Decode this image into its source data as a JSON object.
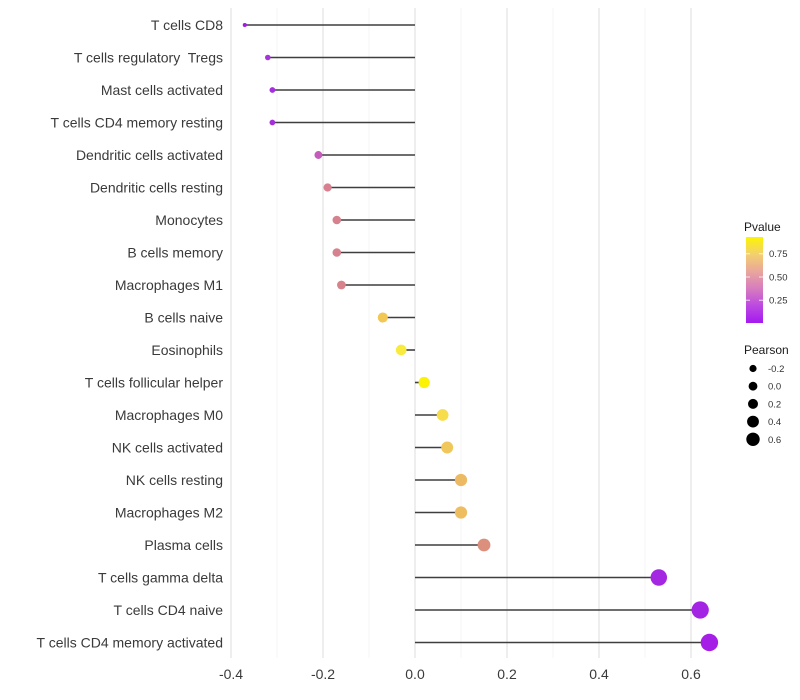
{
  "chart_data": {
    "type": "scatter",
    "subtype": "lollipop",
    "title": "",
    "xlabel": "",
    "ylabel": "",
    "x_tick_labels": [
      "-0.4",
      "-0.2",
      "0.0",
      "0.2",
      "0.4",
      "0.6"
    ],
    "x_tick_values": [
      -0.4,
      -0.2,
      0.0,
      0.2,
      0.4,
      0.6
    ],
    "x_minor_values": [
      -0.3,
      -0.1,
      0.1,
      0.3,
      0.5
    ],
    "xlim": [
      -0.41,
      0.7
    ],
    "grid": "vertical-only",
    "legend_position": "right",
    "categories": [
      "T cells CD8",
      "T cells regulatory  Tregs",
      "Mast cells activated",
      "T cells CD4 memory resting",
      "Dendritic cells activated",
      "Dendritic cells resting",
      "Monocytes",
      "B cells memory",
      "Macrophages M1",
      "B cells naive",
      "Eosinophils",
      "T cells follicular helper",
      "Macrophages M0",
      "NK cells activated",
      "NK cells resting",
      "Macrophages M2",
      "Plasma cells",
      "T cells gamma delta",
      "T cells CD4 naive",
      "T cells CD4 memory activated"
    ],
    "points": [
      {
        "label": "T cells CD8",
        "pearson": -0.37,
        "color": "#A21BE4"
      },
      {
        "label": "T cells regulatory  Tregs",
        "pearson": -0.32,
        "color": "#A835DB"
      },
      {
        "label": "Mast cells activated",
        "pearson": -0.31,
        "color": "#A62FDD"
      },
      {
        "label": "T cells CD4 memory resting",
        "pearson": -0.31,
        "color": "#A62FDD"
      },
      {
        "label": "Dendritic cells activated",
        "pearson": -0.21,
        "color": "#C45CBB"
      },
      {
        "label": "Dendritic cells resting",
        "pearson": -0.19,
        "color": "#D8808F"
      },
      {
        "label": "Monocytes",
        "pearson": -0.17,
        "color": "#D6828E"
      },
      {
        "label": "B cells memory",
        "pearson": -0.17,
        "color": "#D6828E"
      },
      {
        "label": "Macrophages M1",
        "pearson": -0.16,
        "color": "#D8838C"
      },
      {
        "label": "B cells naive",
        "pearson": -0.07,
        "color": "#F2C754"
      },
      {
        "label": "Eosinophils",
        "pearson": -0.03,
        "color": "#F9EB3E"
      },
      {
        "label": "T cells follicular helper",
        "pearson": 0.02,
        "color": "#FBF303"
      },
      {
        "label": "Macrophages M0",
        "pearson": 0.06,
        "color": "#F7DD4B"
      },
      {
        "label": "NK cells activated",
        "pearson": 0.07,
        "color": "#F0C75B"
      },
      {
        "label": "NK cells resting",
        "pearson": 0.1,
        "color": "#EDBA64"
      },
      {
        "label": "Macrophages M2",
        "pearson": 0.1,
        "color": "#EEBD5F"
      },
      {
        "label": "Plasma cells",
        "pearson": 0.15,
        "color": "#DC8F7D"
      },
      {
        "label": "T cells gamma delta",
        "pearson": 0.53,
        "color": "#A428E2"
      },
      {
        "label": "T cells CD4 naive",
        "pearson": 0.62,
        "color": "#A424E4"
      },
      {
        "label": "T cells CD4 memory activated",
        "pearson": 0.64,
        "color": "#A61FE6"
      }
    ],
    "legends": {
      "pvalue": {
        "title": "Pvalue",
        "tick_labels": [
          "0.75",
          "0.50",
          "0.25"
        ],
        "tick_values": [
          0.75,
          0.5,
          0.25
        ],
        "bar_domain_top_to_bottom": [
          0.93,
          0.005
        ],
        "gradient_top_to_bottom": [
          "#FBF403",
          "#F4D06E",
          "#E9A69C",
          "#D77CBE",
          "#BC49E2",
          "#A519EF"
        ]
      },
      "pearson": {
        "title": "Pearson",
        "item_labels": [
          "-0.2",
          "0.0",
          "0.2",
          "0.4",
          "0.6"
        ],
        "item_values": [
          -0.2,
          0.0,
          0.2,
          0.4,
          0.6
        ],
        "dot_color": "#000000"
      }
    },
    "colors": {
      "segment": "#3f3f3f",
      "grid_major": "#e4e4e4",
      "grid_minor": "#f3f3f3",
      "axis_text": "#3a3a3a",
      "legend_text": "#333333",
      "background": "#ffffff"
    }
  }
}
